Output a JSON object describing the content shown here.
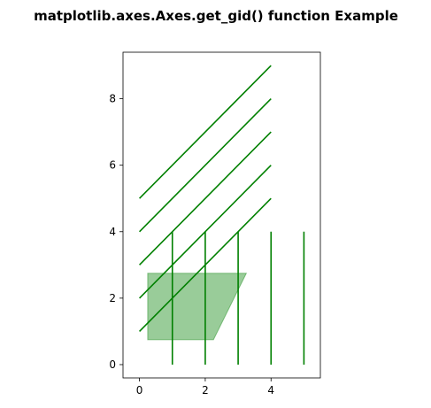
{
  "chart_data": {
    "type": "line",
    "title": "matplotlib.axes.Axes.get_gid() function Example",
    "xlabel": "",
    "ylabel": "",
    "xlim": [
      -0.5,
      5.5
    ],
    "ylim": [
      -0.4,
      9.4
    ],
    "xticks": [
      0,
      2,
      4
    ],
    "yticks": [
      0,
      2,
      4,
      6,
      8
    ],
    "grid": false,
    "line_color": "#008000",
    "fill_color": "#008000",
    "fill_alpha": 0.4,
    "diagonal_lines": [
      {
        "x": [
          0,
          4
        ],
        "y": [
          1,
          5
        ]
      },
      {
        "x": [
          0,
          4
        ],
        "y": [
          2,
          6
        ]
      },
      {
        "x": [
          0,
          4
        ],
        "y": [
          3,
          7
        ]
      },
      {
        "x": [
          0,
          4
        ],
        "y": [
          4,
          8
        ]
      },
      {
        "x": [
          0,
          4
        ],
        "y": [
          5,
          9
        ]
      }
    ],
    "vertical_lines": [
      {
        "x": [
          1,
          1
        ],
        "y": [
          0,
          4
        ]
      },
      {
        "x": [
          2,
          2
        ],
        "y": [
          0,
          4
        ]
      },
      {
        "x": [
          3,
          3
        ],
        "y": [
          0,
          4
        ]
      },
      {
        "x": [
          4,
          4
        ],
        "y": [
          0,
          4
        ]
      },
      {
        "x": [
          5,
          5
        ],
        "y": [
          0,
          4
        ]
      }
    ],
    "filled_polygon": {
      "x": [
        0.25,
        2.25,
        3.25,
        0.25
      ],
      "y": [
        0.75,
        0.75,
        2.75,
        2.75
      ]
    }
  }
}
